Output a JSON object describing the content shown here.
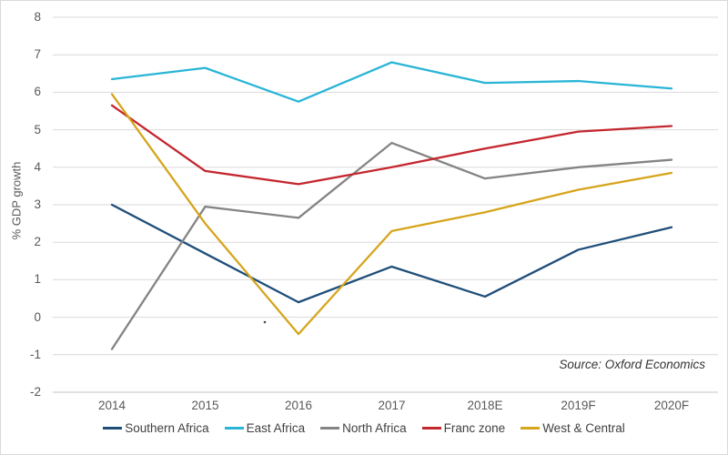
{
  "chart_data": {
    "type": "line",
    "title": "",
    "ylabel": "% GDP growth",
    "xlabel": "",
    "categories": [
      "2014",
      "2015",
      "2016",
      "2017",
      "2018E",
      "2019F",
      "2020F"
    ],
    "ylim": [
      -2,
      8
    ],
    "ytick_step": 1,
    "grid": true,
    "legend_position": "bottom",
    "source_note": "Source: Oxford Economics",
    "series": [
      {
        "name": "Southern Africa",
        "color": "#1f4e79",
        "values": [
          3.0,
          1.7,
          0.4,
          1.35,
          0.55,
          1.8,
          2.4
        ]
      },
      {
        "name": "East Africa",
        "color": "#29b5d6",
        "values": [
          6.35,
          6.65,
          5.75,
          6.8,
          6.25,
          6.3,
          6.1
        ]
      },
      {
        "name": "North Africa",
        "color": "#848484",
        "values": [
          -0.85,
          2.95,
          2.65,
          4.65,
          3.7,
          4.0,
          4.2
        ]
      },
      {
        "name": "Franc zone",
        "color": "#c4262e",
        "values": [
          5.65,
          3.9,
          3.55,
          4.0,
          4.5,
          4.95,
          5.1
        ]
      },
      {
        "name": "West & Central",
        "color": "#d6a51c",
        "values": [
          5.95,
          2.5,
          -0.45,
          2.3,
          2.8,
          3.4,
          3.85
        ]
      }
    ]
  },
  "colors": {
    "background": "#ffffff",
    "border": "#d9d9d9",
    "gridline": "#d9d9d9",
    "axis_line": "#c6c6c6",
    "tick_label": "#595959",
    "legend_label": "#404040",
    "source_text": "#333333"
  }
}
